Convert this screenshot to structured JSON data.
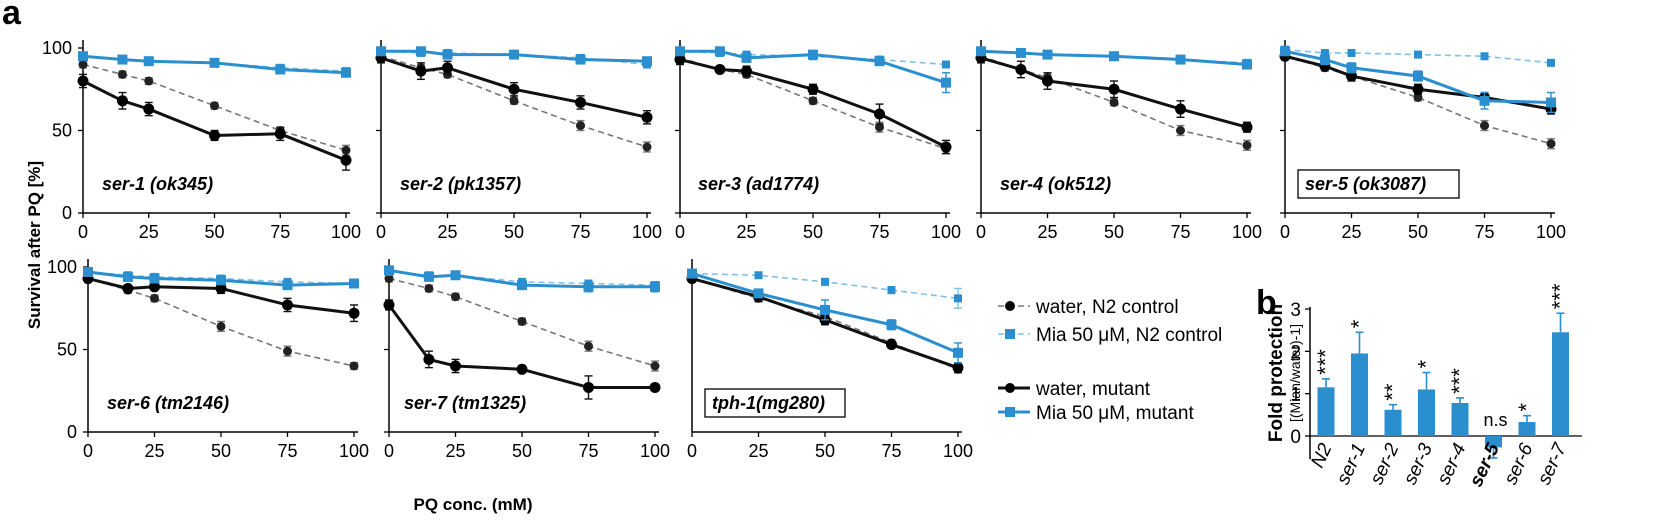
{
  "figure": {
    "panel_a_letter": "a",
    "panel_b_letter": "b",
    "ylabel": "Survival after PQ  [%]",
    "xlabel": "PQ conc. (mM)",
    "legend": [
      {
        "label": "water, N2 control",
        "style": "black-dashed"
      },
      {
        "label": "Mia 50 μM, N2 control",
        "style": "blue-dashed"
      },
      {
        "label": "water, mutant",
        "style": "black-solid"
      },
      {
        "label": "Mia 50 μM, mutant",
        "style": "blue-solid"
      }
    ],
    "colors": {
      "water": "#111111",
      "mia": "#2b8fcf",
      "control_water": "#777777",
      "control_mia": "#7fc0ea"
    }
  },
  "chart_data": [
    {
      "type": "line",
      "title": "ser-1 (ok345)",
      "boxed": false,
      "x": [
        0,
        15,
        25,
        50,
        75,
        100
      ],
      "xticks": [
        0,
        25,
        50,
        75,
        100
      ],
      "yticks": [
        0,
        50,
        100
      ],
      "ylim": [
        0,
        100
      ],
      "series": [
        {
          "name": "water, N2 control",
          "values": [
            90,
            84,
            80,
            65,
            50,
            38
          ],
          "errors": [
            2,
            2,
            2,
            2,
            2,
            3
          ]
        },
        {
          "name": "Mia 50 μM, N2 control",
          "values": [
            95,
            93,
            92,
            91,
            88,
            86
          ],
          "errors": [
            1,
            1,
            1,
            1,
            1,
            1
          ]
        },
        {
          "name": "water, mutant",
          "values": [
            80,
            68,
            63,
            47,
            48,
            32
          ],
          "errors": [
            4,
            5,
            4,
            3,
            4,
            6
          ]
        },
        {
          "name": "Mia 50 μM, mutant",
          "values": [
            95,
            93,
            92,
            91,
            87,
            85
          ],
          "errors": [
            1,
            1,
            1,
            2,
            2,
            2
          ]
        }
      ]
    },
    {
      "type": "line",
      "title": "ser-2 (pk1357)",
      "boxed": false,
      "x": [
        0,
        15,
        25,
        50,
        75,
        100
      ],
      "xticks": [
        0,
        25,
        50,
        75,
        100
      ],
      "yticks": [
        0,
        50,
        100
      ],
      "ylim": [
        0,
        100
      ],
      "series": [
        {
          "name": "water, N2 control",
          "values": [
            95,
            88,
            84,
            68,
            53,
            40
          ],
          "errors": [
            2,
            2,
            2,
            2,
            3,
            3
          ]
        },
        {
          "name": "Mia 50 μM, N2 control",
          "values": [
            98,
            97,
            97,
            96,
            94,
            90
          ],
          "errors": [
            1,
            1,
            1,
            1,
            1,
            1
          ]
        },
        {
          "name": "water, mutant",
          "values": [
            94,
            86,
            88,
            75,
            67,
            58
          ],
          "errors": [
            3,
            5,
            4,
            4,
            4,
            4
          ]
        },
        {
          "name": "Mia 50 μM, mutant",
          "values": [
            98,
            98,
            96,
            96,
            93,
            92
          ],
          "errors": [
            1,
            1,
            1,
            1,
            1,
            2
          ]
        }
      ]
    },
    {
      "type": "line",
      "title": "ser-3 (ad1774)",
      "boxed": false,
      "x": [
        0,
        15,
        25,
        50,
        75,
        100
      ],
      "xticks": [
        0,
        25,
        50,
        75,
        100
      ],
      "yticks": [
        0,
        50,
        100
      ],
      "ylim": [
        0,
        100
      ],
      "series": [
        {
          "name": "water, N2 control",
          "values": [
            94,
            87,
            84,
            68,
            52,
            39
          ],
          "errors": [
            2,
            2,
            2,
            2,
            3,
            3
          ]
        },
        {
          "name": "Mia 50 μM, N2 control",
          "values": [
            98,
            97,
            96,
            95,
            93,
            90
          ],
          "errors": [
            1,
            1,
            1,
            1,
            1,
            1
          ]
        },
        {
          "name": "water, mutant",
          "values": [
            93,
            87,
            86,
            75,
            60,
            40
          ],
          "errors": [
            3,
            2,
            3,
            3,
            6,
            4
          ]
        },
        {
          "name": "Mia 50 μM, mutant",
          "values": [
            98,
            98,
            94,
            96,
            92,
            79
          ],
          "errors": [
            1,
            1,
            2,
            2,
            2,
            6
          ]
        }
      ]
    },
    {
      "type": "line",
      "title": "ser-4 (ok512)",
      "boxed": false,
      "x": [
        0,
        15,
        25,
        50,
        75,
        100
      ],
      "xticks": [
        0,
        25,
        50,
        75,
        100
      ],
      "yticks": [
        0,
        50,
        100
      ],
      "ylim": [
        0,
        100
      ],
      "series": [
        {
          "name": "water, N2 control",
          "values": [
            95,
            87,
            82,
            67,
            50,
            41
          ],
          "errors": [
            2,
            2,
            2,
            2,
            3,
            3
          ]
        },
        {
          "name": "Mia 50 μM, N2 control",
          "values": [
            98,
            97,
            96,
            95,
            93,
            91
          ],
          "errors": [
            1,
            1,
            1,
            1,
            1,
            1
          ]
        },
        {
          "name": "water, mutant",
          "values": [
            94,
            87,
            80,
            75,
            63,
            52
          ],
          "errors": [
            3,
            5,
            5,
            5,
            5,
            3
          ]
        },
        {
          "name": "Mia 50 μM, mutant",
          "values": [
            98,
            97,
            96,
            95,
            93,
            90
          ],
          "errors": [
            1,
            1,
            1,
            1,
            1,
            2
          ]
        }
      ]
    },
    {
      "type": "line",
      "title": "ser-5 (ok3087)",
      "boxed": true,
      "x": [
        0,
        15,
        25,
        50,
        75,
        100
      ],
      "xticks": [
        0,
        25,
        50,
        75,
        100
      ],
      "yticks": [
        0,
        50,
        100
      ],
      "ylim": [
        0,
        100
      ],
      "series": [
        {
          "name": "water, N2 control",
          "values": [
            95,
            88,
            83,
            70,
            53,
            42
          ],
          "errors": [
            2,
            2,
            2,
            2,
            3,
            3
          ]
        },
        {
          "name": "Mia 50 μM, N2 control",
          "values": [
            99,
            97,
            97,
            96,
            95,
            91
          ],
          "errors": [
            1,
            1,
            1,
            1,
            1,
            1
          ]
        },
        {
          "name": "water, mutant",
          "values": [
            95,
            89,
            83,
            75,
            70,
            63
          ],
          "errors": [
            2,
            2,
            3,
            3,
            3,
            3
          ]
        },
        {
          "name": "Mia 50 μM, mutant",
          "values": [
            98,
            93,
            88,
            83,
            68,
            67
          ],
          "errors": [
            2,
            3,
            3,
            3,
            5,
            6
          ]
        }
      ]
    },
    {
      "type": "line",
      "title": "ser-6 (tm2146)",
      "boxed": false,
      "x": [
        0,
        15,
        25,
        50,
        75,
        100
      ],
      "xticks": [
        0,
        25,
        50,
        75,
        100
      ],
      "yticks": [
        0,
        50,
        100
      ],
      "ylim": [
        0,
        100
      ],
      "series": [
        {
          "name": "water, N2 control",
          "values": [
            93,
            86,
            81,
            64,
            49,
            40
          ],
          "errors": [
            2,
            2,
            2,
            3,
            3,
            2
          ]
        },
        {
          "name": "Mia 50 μM, N2 control",
          "values": [
            97,
            95,
            94,
            93,
            91,
            90
          ],
          "errors": [
            1,
            1,
            1,
            1,
            1,
            1
          ]
        },
        {
          "name": "water, mutant",
          "values": [
            93,
            87,
            88,
            87,
            77,
            72
          ],
          "errors": [
            2,
            2,
            2,
            3,
            4,
            5
          ]
        },
        {
          "name": "Mia 50 μM, mutant",
          "values": [
            97,
            94,
            93,
            92,
            89,
            90
          ],
          "errors": [
            1,
            1,
            1,
            1,
            2,
            2
          ]
        }
      ]
    },
    {
      "type": "line",
      "title": "ser-7 (tm1325)",
      "boxed": false,
      "x": [
        0,
        15,
        25,
        50,
        75,
        100
      ],
      "xticks": [
        0,
        25,
        50,
        75,
        100
      ],
      "yticks": [
        0,
        50,
        100
      ],
      "ylim": [
        0,
        100
      ],
      "series": [
        {
          "name": "water, N2 control",
          "values": [
            93,
            87,
            82,
            67,
            52,
            40
          ],
          "errors": [
            2,
            2,
            2,
            2,
            3,
            3
          ]
        },
        {
          "name": "Mia 50 μM, N2 control",
          "values": [
            97,
            95,
            95,
            91,
            90,
            89
          ],
          "errors": [
            1,
            1,
            1,
            1,
            1,
            1
          ]
        },
        {
          "name": "water, mutant",
          "values": [
            77,
            44,
            40,
            38,
            27,
            27
          ],
          "errors": [
            3,
            5,
            4,
            2,
            7,
            2
          ]
        },
        {
          "name": "Mia 50 μM, mutant",
          "values": [
            98,
            94,
            95,
            89,
            88,
            88
          ],
          "errors": [
            1,
            2,
            2,
            2,
            3,
            3
          ]
        }
      ]
    },
    {
      "type": "line",
      "title": "tph-1(mg280)",
      "boxed": true,
      "x": [
        0,
        25,
        50,
        75,
        100
      ],
      "xticks": [
        0,
        25,
        50,
        75,
        100
      ],
      "yticks": [],
      "ylim": [
        0,
        100
      ],
      "series": [
        {
          "name": "water, N2 control",
          "values": [
            93,
            81,
            70,
            54,
            38
          ],
          "errors": [
            1,
            2,
            2,
            2,
            2
          ]
        },
        {
          "name": "Mia 50 μM, N2 control",
          "values": [
            96,
            95,
            91,
            86,
            81
          ],
          "errors": [
            1,
            1,
            2,
            2,
            6
          ]
        },
        {
          "name": "water, mutant",
          "values": [
            93,
            82,
            68,
            53,
            39
          ],
          "errors": [
            2,
            3,
            3,
            2,
            3
          ]
        },
        {
          "name": "Mia 50 μM, mutant",
          "values": [
            96,
            84,
            74,
            65,
            48
          ],
          "errors": [
            1,
            2,
            6,
            3,
            6
          ]
        }
      ]
    },
    {
      "type": "bar",
      "ylabel": "Fold protection",
      "ylabel2": "[(Mian/water)-1]",
      "yticks": [
        0,
        1,
        2,
        3
      ],
      "ylim": [
        -0.6,
        3.1
      ],
      "categories": [
        "N2",
        "ser-1",
        "ser-2",
        "ser-3",
        "ser-4",
        "ser-5",
        "ser-6",
        "ser-7"
      ],
      "bold_category": "ser-5",
      "values": [
        1.15,
        1.95,
        0.62,
        1.1,
        0.78,
        -0.27,
        0.33,
        2.45
      ],
      "errors": [
        0.2,
        0.5,
        0.12,
        0.4,
        0.12,
        0.25,
        0.15,
        0.45
      ],
      "significance": [
        "***",
        "*",
        "**",
        "*",
        "***",
        "n.s",
        "*",
        "***"
      ]
    }
  ]
}
